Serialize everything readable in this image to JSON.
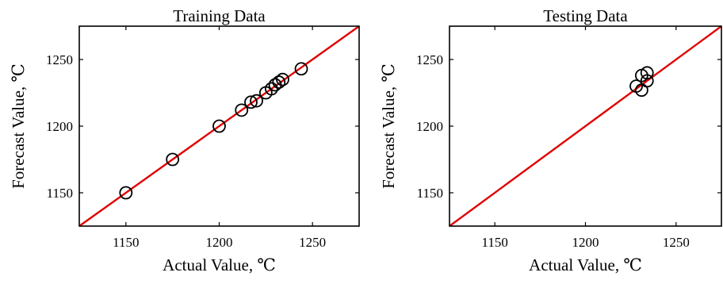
{
  "colors": {
    "reference_line": "#e00000",
    "marker": "#000000",
    "axes": "#000000"
  },
  "chart_data": [
    {
      "type": "scatter",
      "title": "Training Data",
      "xlabel": "Actual  Value, ℃",
      "ylabel": "Forecast Value, ℃",
      "xlim": [
        1125,
        1275
      ],
      "ylim": [
        1125,
        1275
      ],
      "xticks": [
        1150,
        1200,
        1250
      ],
      "yticks": [
        1150,
        1200,
        1250
      ],
      "marker": "open-circle",
      "reference_line": "y = x",
      "grid": false,
      "points": [
        {
          "x": 1150,
          "y": 1150
        },
        {
          "x": 1175,
          "y": 1175
        },
        {
          "x": 1200,
          "y": 1200
        },
        {
          "x": 1212,
          "y": 1212
        },
        {
          "x": 1217,
          "y": 1218
        },
        {
          "x": 1220,
          "y": 1219
        },
        {
          "x": 1225,
          "y": 1225
        },
        {
          "x": 1228,
          "y": 1228
        },
        {
          "x": 1230,
          "y": 1231
        },
        {
          "x": 1232,
          "y": 1233
        },
        {
          "x": 1234,
          "y": 1235
        },
        {
          "x": 1244,
          "y": 1243
        }
      ]
    },
    {
      "type": "scatter",
      "title": "Testing Data",
      "xlabel": "Actual  Value, ℃",
      "ylabel": "Forecast Value, ℃",
      "xlim": [
        1125,
        1275
      ],
      "ylim": [
        1125,
        1275
      ],
      "xticks": [
        1150,
        1200,
        1250
      ],
      "yticks": [
        1150,
        1200,
        1250
      ],
      "marker": "open-circle",
      "reference_line": "y = x",
      "grid": false,
      "points": [
        {
          "x": 1228,
          "y": 1230
        },
        {
          "x": 1231,
          "y": 1238
        },
        {
          "x": 1231,
          "y": 1227
        },
        {
          "x": 1234,
          "y": 1240
        },
        {
          "x": 1234,
          "y": 1234
        }
      ]
    }
  ]
}
